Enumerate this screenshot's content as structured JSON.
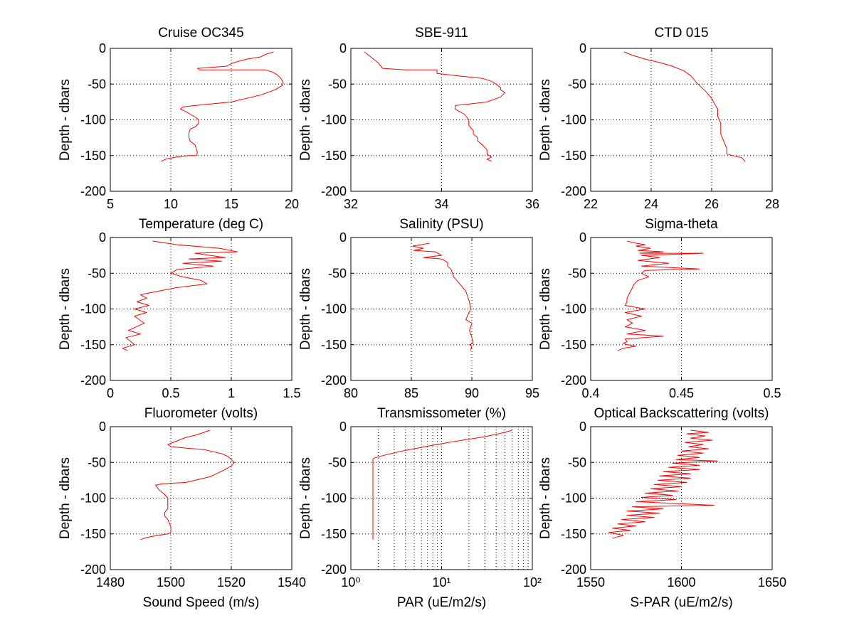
{
  "figure": {
    "background": "#ffffff",
    "line_color": "#ff0000"
  },
  "chart_data": [
    {
      "type": "line",
      "title": "Cruise OC345",
      "xlabel": "Temperature (deg C)",
      "ylabel": "Depth - dbars",
      "xlim": [
        5,
        20
      ],
      "ylim": [
        -200,
        0
      ],
      "xscale": "linear",
      "xticks": [
        5,
        10,
        15,
        20
      ],
      "xtick_labels": [
        "5",
        "10",
        "15",
        "20"
      ],
      "yticks": [
        -200,
        -150,
        -100,
        -50,
        0
      ],
      "ytick_labels": [
        "-200",
        "-150",
        "-100",
        "-50",
        "0"
      ],
      "grid": true,
      "series": [
        {
          "color": "#ff0000",
          "x": [
            18.5,
            17.9,
            17.4,
            16.3,
            15.2,
            14.6,
            12.2,
            12.4,
            15.0,
            17.8,
            18.4,
            18.8,
            19.1,
            19.3,
            19.2,
            18.6,
            17.5,
            15.0,
            12.0,
            11.0,
            10.8,
            11.2,
            11.7,
            12.1,
            12.3,
            12.3,
            12.0,
            11.6,
            11.5,
            11.5,
            11.6,
            12.0,
            12.1,
            12.2,
            12.1,
            11.5,
            10.5,
            9.6,
            9.2
          ],
          "y": [
            -5,
            -8,
            -12,
            -15,
            -20,
            -25,
            -28,
            -30,
            -30,
            -30,
            -33,
            -37,
            -42,
            -48,
            -52,
            -58,
            -65,
            -75,
            -80,
            -82,
            -85,
            -88,
            -93,
            -97,
            -100,
            -105,
            -110,
            -113,
            -118,
            -125,
            -130,
            -135,
            -140,
            -146,
            -150,
            -150,
            -152,
            -155,
            -158
          ]
        }
      ]
    },
    {
      "type": "line",
      "title": "SBE-911",
      "xlabel": "Salinity (PSU)",
      "ylabel": "Depth - dbars",
      "xlim": [
        32,
        36
      ],
      "ylim": [
        -200,
        0
      ],
      "xscale": "linear",
      "xticks": [
        32,
        34,
        36
      ],
      "xtick_labels": [
        "32",
        "34",
        "36"
      ],
      "yticks": [
        -200,
        -150,
        -100,
        -50,
        0
      ],
      "ytick_labels": [
        "-200",
        "-150",
        "-100",
        "-50",
        "0"
      ],
      "grid": true,
      "series": [
        {
          "color": "#ff0000",
          "x": [
            32.3,
            32.4,
            32.5,
            32.6,
            32.7,
            33.2,
            33.9,
            33.9,
            34.3,
            34.9,
            35.1,
            35.2,
            35.3,
            35.3,
            35.4,
            35.3,
            35.0,
            34.6,
            34.3,
            34.3,
            34.5,
            34.6,
            34.6,
            34.7,
            34.7,
            34.8,
            34.8,
            34.9,
            35.0,
            35.0,
            35.1,
            35.0,
            35.1
          ],
          "y": [
            -5,
            -10,
            -15,
            -20,
            -28,
            -30,
            -30,
            -35,
            -38,
            -42,
            -46,
            -50,
            -55,
            -58,
            -62,
            -68,
            -75,
            -78,
            -80,
            -85,
            -92,
            -100,
            -108,
            -115,
            -120,
            -125,
            -130,
            -135,
            -142,
            -148,
            -152,
            -155,
            -158
          ]
        }
      ]
    },
    {
      "type": "line",
      "title": "CTD 015",
      "xlabel": "Sigma-theta",
      "ylabel": "Depth - dbars",
      "xlim": [
        22,
        28
      ],
      "ylim": [
        -200,
        0
      ],
      "xscale": "linear",
      "xticks": [
        22,
        24,
        26,
        28
      ],
      "xtick_labels": [
        "22",
        "24",
        "26",
        "28"
      ],
      "yticks": [
        -200,
        -150,
        -100,
        -50,
        0
      ],
      "ytick_labels": [
        "-200",
        "-150",
        "-100",
        "-50",
        "0"
      ],
      "grid": true,
      "series": [
        {
          "color": "#ff0000",
          "x": [
            23.1,
            23.4,
            23.8,
            24.3,
            24.7,
            25.0,
            25.1,
            25.3,
            25.5,
            25.8,
            26.0,
            26.1,
            26.2,
            26.2,
            26.3,
            26.3,
            26.4,
            26.5,
            26.5,
            26.7,
            27.0,
            27.1
          ],
          "y": [
            -5,
            -10,
            -15,
            -20,
            -25,
            -30,
            -32,
            -38,
            -48,
            -60,
            -70,
            -78,
            -85,
            -95,
            -105,
            -120,
            -130,
            -140,
            -148,
            -150,
            -153,
            -158
          ]
        }
      ]
    },
    {
      "type": "line",
      "title": "",
      "xlabel": "Fluorometer (volts)",
      "ylabel": "Depth - dbars",
      "xlim": [
        0,
        1.5
      ],
      "ylim": [
        -200,
        0
      ],
      "xscale": "linear",
      "xticks": [
        0,
        0.5,
        1,
        1.5
      ],
      "xtick_labels": [
        "0",
        "0.5",
        "1",
        "1.5"
      ],
      "yticks": [
        -200,
        -150,
        -100,
        -50,
        0
      ],
      "ytick_labels": [
        "-200",
        "-150",
        "-100",
        "-50",
        "0"
      ],
      "grid": true,
      "series": [
        {
          "color": "#ff0000",
          "x": [
            0.35,
            0.55,
            0.9,
            1.05,
            0.7,
            0.95,
            0.65,
            0.92,
            0.6,
            0.85,
            0.55,
            0.5,
            0.6,
            0.75,
            0.8,
            0.55,
            0.4,
            0.25,
            0.3,
            0.22,
            0.32,
            0.2,
            0.3,
            0.2,
            0.28,
            0.15,
            0.25,
            0.13,
            0.2,
            0.1,
            0.14
          ],
          "y": [
            -5,
            -10,
            -15,
            -20,
            -22,
            -28,
            -30,
            -33,
            -36,
            -40,
            -45,
            -50,
            -55,
            -60,
            -65,
            -70,
            -75,
            -80,
            -85,
            -90,
            -95,
            -100,
            -105,
            -110,
            -120,
            -130,
            -135,
            -140,
            -150,
            -155,
            -158
          ]
        }
      ]
    },
    {
      "type": "line",
      "title": "",
      "xlabel": "Transmissometer (%)",
      "ylabel": "Depth - dbars",
      "xlim": [
        80,
        95
      ],
      "ylim": [
        -200,
        0
      ],
      "xscale": "linear",
      "xticks": [
        80,
        85,
        90,
        95
      ],
      "xtick_labels": [
        "80",
        "85",
        "90",
        "95"
      ],
      "yticks": [
        -200,
        -150,
        -100,
        -50,
        0
      ],
      "ytick_labels": [
        "-200",
        "-150",
        "-100",
        "-50",
        "0"
      ],
      "grid": true,
      "series": [
        {
          "color": "#ff0000",
          "x": [
            86.5,
            85.8,
            85.1,
            86.0,
            85.2,
            87.0,
            87.5,
            86.0,
            87.5,
            88.0,
            88.0,
            88.3,
            88.5,
            89.0,
            89.5,
            89.8,
            89.9,
            89.5,
            90.0,
            89.8,
            90.0,
            90.1,
            89.8,
            90.0,
            89.9
          ],
          "y": [
            -8,
            -10,
            -12,
            -15,
            -18,
            -20,
            -25,
            -28,
            -30,
            -35,
            -40,
            -45,
            -55,
            -65,
            -75,
            -90,
            -100,
            -115,
            -120,
            -130,
            -140,
            -148,
            -150,
            -152,
            -158
          ]
        }
      ]
    },
    {
      "type": "line",
      "title": "",
      "xlabel": "Optical Backscattering (volts)",
      "ylabel": "Depth - dbars",
      "xlim": [
        0.4,
        0.5
      ],
      "ylim": [
        -200,
        0
      ],
      "xscale": "linear",
      "xticks": [
        0.4,
        0.45,
        0.5
      ],
      "xtick_labels": [
        "0.4",
        "0.45",
        "0.5"
      ],
      "yticks": [
        -200,
        -150,
        -100,
        -50,
        0
      ],
      "ytick_labels": [
        "-200",
        "-150",
        "-100",
        "-50",
        "0"
      ],
      "grid": true,
      "series": [
        {
          "color": "#ff0000",
          "x": [
            0.42,
            0.425,
            0.43,
            0.425,
            0.433,
            0.426,
            0.44,
            0.427,
            0.462,
            0.428,
            0.438,
            0.426,
            0.443,
            0.428,
            0.46,
            0.43,
            0.428,
            0.432,
            0.426,
            0.424,
            0.423,
            0.422,
            0.421,
            0.42,
            0.42,
            0.419,
            0.43,
            0.419,
            0.428,
            0.42,
            0.423,
            0.419,
            0.43,
            0.42,
            0.44,
            0.419,
            0.42,
            0.418,
            0.42,
            0.425,
            0.418,
            0.415
          ],
          "y": [
            -5,
            -8,
            -10,
            -12,
            -15,
            -18,
            -20,
            -22,
            -22,
            -25,
            -28,
            -32,
            -36,
            -40,
            -44,
            -46,
            -50,
            -55,
            -60,
            -65,
            -70,
            -75,
            -80,
            -85,
            -90,
            -95,
            -100,
            -105,
            -110,
            -115,
            -120,
            -125,
            -130,
            -135,
            -138,
            -142,
            -146,
            -148,
            -150,
            -152,
            -155,
            -158
          ]
        }
      ]
    },
    {
      "type": "line",
      "title": "",
      "xlabel": "Sound Speed (m/s)",
      "ylabel": "Depth - dbars",
      "xlim": [
        1480,
        1540
      ],
      "ylim": [
        -200,
        0
      ],
      "xscale": "linear",
      "xticks": [
        1480,
        1500,
        1520,
        1540
      ],
      "xtick_labels": [
        "1480",
        "1500",
        "1520",
        "1540"
      ],
      "yticks": [
        -200,
        -150,
        -100,
        -50,
        0
      ],
      "ytick_labels": [
        "-200",
        "-150",
        "-100",
        "-50",
        "0"
      ],
      "grid": true,
      "series": [
        {
          "color": "#ff0000",
          "x": [
            1513,
            1511,
            1508,
            1505,
            1502,
            1499,
            1500,
            1505,
            1511,
            1514,
            1517,
            1519,
            1520,
            1521,
            1520,
            1517,
            1513,
            1505,
            1497,
            1495,
            1496,
            1498,
            1499,
            1499,
            1499,
            1499,
            1498,
            1498,
            1499,
            1500,
            1500,
            1499,
            1496,
            1492,
            1490
          ],
          "y": [
            -5,
            -8,
            -12,
            -15,
            -20,
            -25,
            -28,
            -30,
            -32,
            -35,
            -38,
            -42,
            -46,
            -50,
            -55,
            -62,
            -70,
            -78,
            -80,
            -82,
            -88,
            -95,
            -100,
            -105,
            -110,
            -115,
            -120,
            -125,
            -130,
            -140,
            -148,
            -150,
            -152,
            -155,
            -158
          ]
        }
      ]
    },
    {
      "type": "line",
      "title": "",
      "xlabel": "PAR (uE/m2/s)",
      "ylabel": "Depth - dbars",
      "xlim": [
        1,
        100
      ],
      "ylim": [
        -200,
        0
      ],
      "xscale": "log",
      "xticks": [
        1,
        10,
        100
      ],
      "xtick_labels": [
        "10⁰",
        "10¹",
        "10²"
      ],
      "yticks": [
        -200,
        -150,
        -100,
        -50,
        0
      ],
      "ytick_labels": [
        "-200",
        "-150",
        "-100",
        "-50",
        "0"
      ],
      "grid": true,
      "series": [
        {
          "color": "#ff0000",
          "x": [
            60,
            50,
            30,
            15,
            8,
            4,
            2.5,
            1.8,
            1.75,
            1.75,
            1.75,
            1.75
          ],
          "y": [
            -5,
            -8,
            -14,
            -20,
            -26,
            -33,
            -39,
            -44,
            -46,
            -80,
            -120,
            -158
          ]
        }
      ]
    },
    {
      "type": "line",
      "title": "",
      "xlabel": "S-PAR  (uE/m2/s)",
      "ylabel": "Depth - dbars",
      "xlim": [
        1550,
        1650
      ],
      "ylim": [
        -200,
        0
      ],
      "xscale": "linear",
      "xticks": [
        1550,
        1600,
        1650
      ],
      "xtick_labels": [
        "1550",
        "1600",
        "1650"
      ],
      "yticks": [
        -200,
        -150,
        -100,
        -50,
        0
      ],
      "ytick_labels": [
        "-200",
        "-150",
        "-100",
        "-50",
        "0"
      ],
      "grid": true,
      "series": [
        {
          "color": "#ff0000",
          "x": [
            1605,
            1615,
            1603,
            1613,
            1605,
            1617,
            1602,
            1612,
            1604,
            1615,
            1600,
            1612,
            1598,
            1610,
            1597,
            1620,
            1595,
            1610,
            1593,
            1610,
            1590,
            1605,
            1588,
            1605,
            1587,
            1603,
            1585,
            1600,
            1583,
            1598,
            1580,
            1595,
            1578,
            1597,
            1575,
            1618,
            1573,
            1590,
            1570,
            1588,
            1570,
            1585,
            1567,
            1580,
            1565,
            1575,
            1562,
            1572,
            1560,
            1568,
            1562
          ],
          "y": [
            -5,
            -8,
            -10,
            -13,
            -16,
            -19,
            -22,
            -25,
            -28,
            -31,
            -34,
            -37,
            -40,
            -43,
            -46,
            -48,
            -51,
            -54,
            -57,
            -60,
            -63,
            -66,
            -69,
            -72,
            -75,
            -78,
            -81,
            -84,
            -87,
            -90,
            -93,
            -96,
            -99,
            -102,
            -105,
            -110,
            -112,
            -115,
            -118,
            -121,
            -124,
            -127,
            -130,
            -133,
            -136,
            -139,
            -142,
            -145,
            -148,
            -152,
            -156
          ]
        }
      ]
    }
  ]
}
